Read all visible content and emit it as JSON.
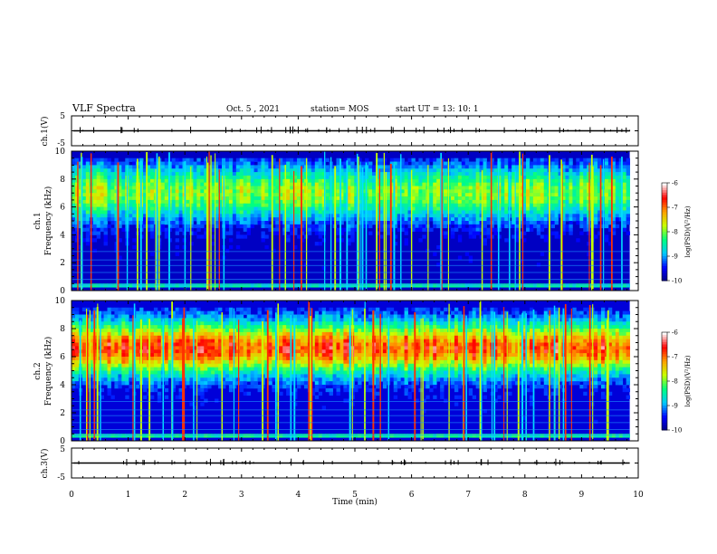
{
  "header": {
    "title": "VLF Spectra",
    "date": "Oct. 5 , 2021",
    "station": "station= MOS",
    "start": "start  UT  =   13: 10: 1"
  },
  "chart_data": {
    "type": "heatmap",
    "xlabel": "Time  (min)",
    "xlim": [
      0,
      10
    ],
    "xticks": [
      "0",
      "1",
      "2",
      "3",
      "4",
      "5",
      "6",
      "7",
      "8",
      "9",
      "10"
    ],
    "data_end_min": 9.85,
    "panels": [
      {
        "name": "ch1-voltage",
        "ylabel": "ch.1(V)",
        "ylim": [
          -5,
          5
        ],
        "yticks": [
          "5",
          "-5"
        ],
        "baseline": 0
      },
      {
        "name": "ch1-spectrogram",
        "ylabel": "ch.1\nFrequency  (kHz)",
        "ylim": [
          0,
          10
        ],
        "yticks": [
          "0",
          "2",
          "4",
          "6",
          "8",
          "10"
        ],
        "colorbar": {
          "label": "log(PSD)(V²/Hz)",
          "range": [
            -10,
            -6
          ],
          "ticks": [
            "-6",
            "-7",
            "-8",
            "-9",
            "-10"
          ]
        },
        "band_center_khz": 7.0,
        "band_width_khz": 1.9,
        "band_peak_log_psd": -8.0,
        "background_log_psd": -9.7
      },
      {
        "name": "ch2-spectrogram",
        "ylabel": "ch.2\nFrequency  (kHz)",
        "ylim": [
          0,
          10
        ],
        "yticks": [
          "0",
          "2",
          "4",
          "6",
          "8",
          "10"
        ],
        "colorbar": {
          "label": "log(PSD)(V²/Hz)",
          "range": [
            -10,
            -6
          ],
          "ticks": [
            "-6",
            "-7",
            "-8",
            "-9",
            "-10"
          ]
        },
        "band_center_khz": 6.6,
        "band_width_khz": 1.8,
        "band_peak_log_psd": -6.9,
        "background_log_psd": -9.6
      },
      {
        "name": "ch3-voltage",
        "ylabel": "ch.3(V)",
        "ylim": [
          -5,
          5
        ],
        "yticks": [
          "5",
          "-5"
        ],
        "baseline": 0
      }
    ],
    "colorscale": [
      "#000080",
      "#0000ff",
      "#00c8ff",
      "#00ff80",
      "#c8ff00",
      "#ffa000",
      "#ff0000",
      "#ffffff"
    ]
  }
}
